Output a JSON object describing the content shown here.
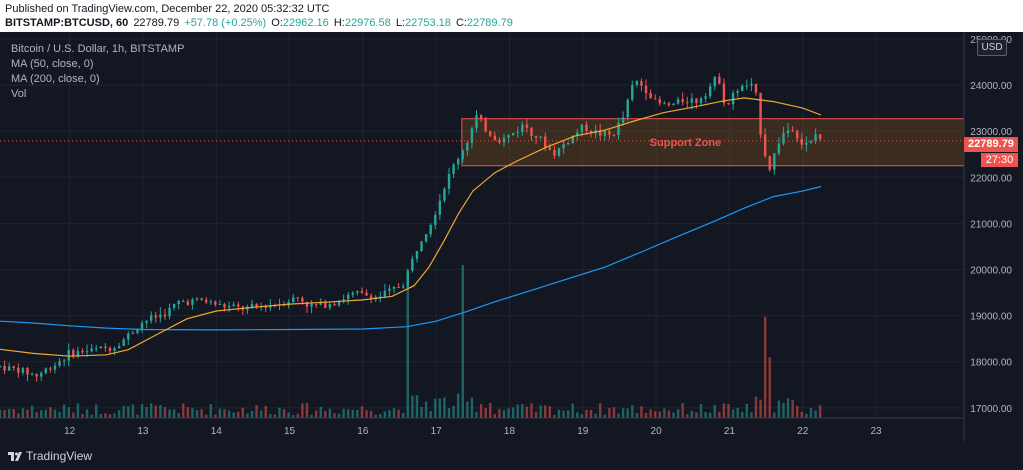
{
  "header": {
    "published": "Published on TradingView.com, December 22, 2020 05:32:32 UTC",
    "symbol": "BITSTAMP:BTCUSD, 60",
    "last": "22789.79",
    "change": "+57.78 (+0.25%)",
    "o_label": "O:",
    "o_value": "22962.16",
    "h_label": "H:",
    "h_value": "22976.58",
    "l_label": "L:",
    "l_value": "22753.18",
    "c_label": "C:",
    "c_value": "22789.79"
  },
  "legend": {
    "title": "Bitcoin / U.S. Dollar, 1h, BITSTAMP",
    "ma50": "MA (50, close, 0)",
    "ma200": "MA (200, close, 0)",
    "vol": "Vol"
  },
  "currency_button": "USD",
  "price_tag": "22789.79",
  "countdown_tag": "27:30",
  "annotation": "Support Zone",
  "branding": "TradingView",
  "colors": {
    "background": "#131722",
    "up": "#26a69a",
    "down": "#ef5350",
    "ma50": "#f0a830",
    "ma200": "#2196f3",
    "zone_fill": "#6b4a1f",
    "zone_border": "#ef5350",
    "annotation": "#ef5350"
  },
  "chart_data": {
    "type": "candlestick",
    "title": "Bitcoin / U.S. Dollar, 1h, BITSTAMP",
    "x_tick_labels": [
      "12",
      "13",
      "14",
      "15",
      "16",
      "17",
      "18",
      "19",
      "20",
      "21",
      "22",
      "23"
    ],
    "x_ticks_day": [
      12,
      13,
      14,
      15,
      16,
      17,
      18,
      19,
      20,
      21,
      22,
      23
    ],
    "x_range_day": [
      11.05,
      24.2
    ],
    "y_tick_labels": [
      "17000.00",
      "18000.00",
      "19000.00",
      "20000.00",
      "21000.00",
      "22000.00",
      "23000.00",
      "24000.00",
      "25000.00"
    ],
    "y_ticks": [
      17000,
      18000,
      19000,
      20000,
      21000,
      22000,
      23000,
      24000,
      25000
    ],
    "y_range": [
      16780,
      25150
    ],
    "last_price": 22789.79,
    "support_zone": {
      "label": "Support Zone",
      "low": 22250,
      "high": 23270,
      "start_day": 17.35,
      "end_day": 24.2
    },
    "price_path": [
      [
        11.05,
        17900
      ],
      [
        11.3,
        17820
      ],
      [
        11.55,
        17700
      ],
      [
        11.8,
        17950
      ],
      [
        12.0,
        18180
      ],
      [
        12.3,
        18250
      ],
      [
        12.6,
        18320
      ],
      [
        12.75,
        18500
      ],
      [
        13.0,
        18870
      ],
      [
        13.3,
        19050
      ],
      [
        13.5,
        19300
      ],
      [
        13.8,
        19330
      ],
      [
        14.1,
        19200
      ],
      [
        14.4,
        19150
      ],
      [
        14.7,
        19220
      ],
      [
        14.9,
        19280
      ],
      [
        15.1,
        19400
      ],
      [
        15.3,
        19200
      ],
      [
        15.6,
        19300
      ],
      [
        15.9,
        19480
      ],
      [
        16.2,
        19400
      ],
      [
        16.4,
        19550
      ],
      [
        16.55,
        19700
      ],
      [
        16.7,
        20300
      ],
      [
        16.8,
        20700
      ],
      [
        16.95,
        21100
      ],
      [
        17.1,
        21750
      ],
      [
        17.25,
        22300
      ],
      [
        17.4,
        22700
      ],
      [
        17.55,
        23300
      ],
      [
        17.7,
        23000
      ],
      [
        17.85,
        22800
      ],
      [
        18.0,
        22900
      ],
      [
        18.2,
        23150
      ],
      [
        18.4,
        22850
      ],
      [
        18.6,
        22500
      ],
      [
        18.8,
        22800
      ],
      [
        19.0,
        23100
      ],
      [
        19.2,
        22950
      ],
      [
        19.4,
        22900
      ],
      [
        19.55,
        23300
      ],
      [
        19.7,
        24100
      ],
      [
        19.85,
        23950
      ],
      [
        20.0,
        23600
      ],
      [
        20.2,
        23550
      ],
      [
        20.4,
        23700
      ],
      [
        20.55,
        23650
      ],
      [
        20.7,
        23900
      ],
      [
        20.85,
        24200
      ],
      [
        20.95,
        23500
      ],
      [
        21.1,
        23900
      ],
      [
        21.25,
        24000
      ],
      [
        21.35,
        23900
      ],
      [
        21.45,
        22700
      ],
      [
        21.55,
        22200
      ],
      [
        21.7,
        22900
      ],
      [
        21.85,
        23100
      ],
      [
        22.0,
        22700
      ],
      [
        22.1,
        22700
      ],
      [
        22.2,
        23000
      ],
      [
        22.25,
        22789.79
      ]
    ],
    "ma50_path": [
      [
        11.05,
        18270
      ],
      [
        11.5,
        18180
      ],
      [
        12.0,
        18120
      ],
      [
        12.5,
        18150
      ],
      [
        12.8,
        18260
      ],
      [
        13.2,
        18600
      ],
      [
        13.6,
        18930
      ],
      [
        14.0,
        19100
      ],
      [
        14.5,
        19180
      ],
      [
        15.0,
        19250
      ],
      [
        15.5,
        19290
      ],
      [
        16.0,
        19340
      ],
      [
        16.4,
        19420
      ],
      [
        16.7,
        19650
      ],
      [
        16.9,
        20050
      ],
      [
        17.1,
        20600
      ],
      [
        17.3,
        21200
      ],
      [
        17.5,
        21700
      ],
      [
        17.8,
        22100
      ],
      [
        18.1,
        22350
      ],
      [
        18.5,
        22650
      ],
      [
        18.9,
        22900
      ],
      [
        19.3,
        23020
      ],
      [
        19.7,
        23220
      ],
      [
        20.1,
        23400
      ],
      [
        20.5,
        23520
      ],
      [
        20.9,
        23650
      ],
      [
        21.2,
        23720
      ],
      [
        21.6,
        23640
      ],
      [
        22.0,
        23500
      ],
      [
        22.25,
        23350
      ]
    ],
    "ma200_path": [
      [
        11.05,
        18880
      ],
      [
        11.5,
        18840
      ],
      [
        12.0,
        18780
      ],
      [
        12.5,
        18730
      ],
      [
        13.0,
        18700
      ],
      [
        14.0,
        18690
      ],
      [
        15.0,
        18700
      ],
      [
        16.0,
        18710
      ],
      [
        16.6,
        18760
      ],
      [
        17.0,
        18880
      ],
      [
        17.4,
        19080
      ],
      [
        17.8,
        19300
      ],
      [
        18.3,
        19550
      ],
      [
        18.8,
        19800
      ],
      [
        19.3,
        20050
      ],
      [
        19.8,
        20380
      ],
      [
        20.3,
        20720
      ],
      [
        20.8,
        21050
      ],
      [
        21.2,
        21330
      ],
      [
        21.6,
        21580
      ],
      [
        22.0,
        21700
      ],
      [
        22.25,
        21800
      ]
    ],
    "volume_spikes": [
      {
        "day": 16.6,
        "relative": 0.95,
        "direction": "up"
      },
      {
        "day": 17.35,
        "relative": 1.0,
        "direction": "down"
      },
      {
        "day": 21.5,
        "relative": 0.75,
        "direction": "down"
      },
      {
        "day": 21.55,
        "relative": 0.45,
        "direction": "up"
      }
    ]
  }
}
